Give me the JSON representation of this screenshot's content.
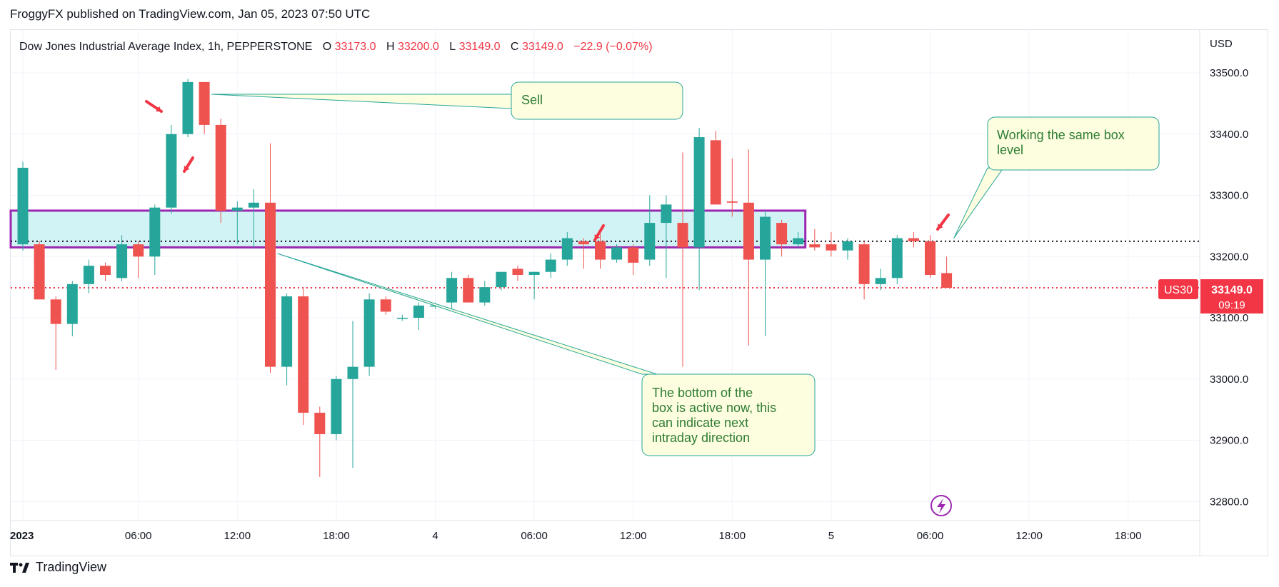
{
  "header": {
    "published_line": "FroggyFX published on TradingView.com, Jan 05, 2023 07:50 UTC"
  },
  "footer": {
    "logo_text": "TradingView",
    "logo_icon": "tradingview-logo-icon"
  },
  "colors": {
    "up": "#26a69a",
    "down": "#ef5350",
    "box_fill": "#d2f3f5",
    "box_border": "#9c27b0",
    "note_fill": "#fdfde0",
    "note_border": "#26a69a",
    "note_text": "#2e7d32",
    "price_line": "#f23645",
    "arrow": "#f23645"
  },
  "chart_data": {
    "type": "candlestick",
    "symbol_label": "US30",
    "legend": {
      "title": "Dow Jones Industrial Average Index, 1h, PEPPERSTONE",
      "o_label": "O",
      "o_value": "33173.0",
      "h_label": "H",
      "h_value": "33200.0",
      "l_label": "L",
      "l_value": "33149.0",
      "c_label": "C",
      "c_value": "33149.0",
      "change": "−22.9 (−0.07%)"
    },
    "y_axis": {
      "currency": "USD",
      "range": [
        32770,
        33570
      ],
      "ticks": [
        "33500.0",
        "33400.0",
        "33300.0",
        "33200.0",
        "33100.0",
        "33000.0",
        "32900.0",
        "32800.0"
      ],
      "tick_values": [
        33500,
        33400,
        33300,
        33200,
        33100,
        33000,
        32900,
        32800
      ]
    },
    "x_axis": {
      "ticks": [
        "2023",
        "06:00",
        "12:00",
        "18:00",
        "4",
        "06:00",
        "12:00",
        "18:00",
        "5",
        "06:00",
        "12:00",
        "18:00"
      ],
      "tick_bar_index": [
        0,
        7,
        13,
        19,
        25,
        31,
        37,
        43,
        49,
        55,
        61,
        67
      ]
    },
    "current_price": {
      "label": "US30",
      "value": "33149.0",
      "countdown": "09:19",
      "price": 33149
    },
    "dotted_level": 33225,
    "box": {
      "top": 33275,
      "bottom": 33215,
      "start_bar": -1,
      "end_bar": 47
    },
    "candles": [
      {
        "o": 33220,
        "h": 33355,
        "l": 33210,
        "c": 33345
      },
      {
        "o": 33220,
        "h": 33225,
        "l": 33130,
        "c": 33130
      },
      {
        "o": 33130,
        "h": 33135,
        "l": 33015,
        "c": 33090
      },
      {
        "o": 33090,
        "h": 33160,
        "l": 33070,
        "c": 33155
      },
      {
        "o": 33155,
        "h": 33195,
        "l": 33140,
        "c": 33185
      },
      {
        "o": 33185,
        "h": 33190,
        "l": 33160,
        "c": 33170
      },
      {
        "o": 33165,
        "h": 33235,
        "l": 33160,
        "c": 33220
      },
      {
        "o": 33220,
        "h": 33225,
        "l": 33165,
        "c": 33200
      },
      {
        "o": 33200,
        "h": 33285,
        "l": 33170,
        "c": 33280
      },
      {
        "o": 33280,
        "h": 33415,
        "l": 33270,
        "c": 33400
      },
      {
        "o": 33400,
        "h": 33490,
        "l": 33395,
        "c": 33485
      },
      {
        "o": 33485,
        "h": 33485,
        "l": 33400,
        "c": 33415
      },
      {
        "o": 33415,
        "h": 33425,
        "l": 33255,
        "c": 33275
      },
      {
        "o": 33275,
        "h": 33290,
        "l": 33220,
        "c": 33280
      },
      {
        "o": 33280,
        "h": 33310,
        "l": 33215,
        "c": 33288
      },
      {
        "o": 33288,
        "h": 33385,
        "l": 33010,
        "c": 33020
      },
      {
        "o": 33020,
        "h": 33140,
        "l": 32990,
        "c": 33135
      },
      {
        "o": 33135,
        "h": 33150,
        "l": 32925,
        "c": 32945
      },
      {
        "o": 32945,
        "h": 32955,
        "l": 32840,
        "c": 32910
      },
      {
        "o": 32910,
        "h": 33005,
        "l": 32900,
        "c": 33000
      },
      {
        "o": 33000,
        "h": 33095,
        "l": 32855,
        "c": 33020
      },
      {
        "o": 33020,
        "h": 33140,
        "l": 33005,
        "c": 33130
      },
      {
        "o": 33130,
        "h": 33135,
        "l": 33105,
        "c": 33110
      },
      {
        "o": 33100,
        "h": 33105,
        "l": 33095,
        "c": 33100
      },
      {
        "o": 33100,
        "h": 33125,
        "l": 33080,
        "c": 33120
      },
      {
        "o": 33120,
        "h": 33125,
        "l": 33115,
        "c": 33120
      },
      {
        "o": 33125,
        "h": 33175,
        "l": 33115,
        "c": 33165
      },
      {
        "o": 33165,
        "h": 33170,
        "l": 33125,
        "c": 33125
      },
      {
        "o": 33125,
        "h": 33160,
        "l": 33120,
        "c": 33150
      },
      {
        "o": 33150,
        "h": 33175,
        "l": 33145,
        "c": 33175
      },
      {
        "o": 33180,
        "h": 33185,
        "l": 33160,
        "c": 33170
      },
      {
        "o": 33170,
        "h": 33175,
        "l": 33130,
        "c": 33175
      },
      {
        "o": 33175,
        "h": 33205,
        "l": 33165,
        "c": 33195
      },
      {
        "o": 33195,
        "h": 33240,
        "l": 33185,
        "c": 33230
      },
      {
        "o": 33225,
        "h": 33230,
        "l": 33180,
        "c": 33220
      },
      {
        "o": 33225,
        "h": 33240,
        "l": 33180,
        "c": 33195
      },
      {
        "o": 33195,
        "h": 33220,
        "l": 33190,
        "c": 33215
      },
      {
        "o": 33215,
        "h": 33220,
        "l": 33170,
        "c": 33190
      },
      {
        "o": 33195,
        "h": 33300,
        "l": 33185,
        "c": 33255
      },
      {
        "o": 33255,
        "h": 33300,
        "l": 33165,
        "c": 33285
      },
      {
        "o": 33255,
        "h": 33370,
        "l": 33020,
        "c": 33215
      },
      {
        "o": 33215,
        "h": 33410,
        "l": 33145,
        "c": 33395
      },
      {
        "o": 33390,
        "h": 33405,
        "l": 33285,
        "c": 33285
      },
      {
        "o": 33290,
        "h": 33360,
        "l": 33265,
        "c": 33288
      },
      {
        "o": 33288,
        "h": 33375,
        "l": 33055,
        "c": 33195
      },
      {
        "o": 33195,
        "h": 33275,
        "l": 33070,
        "c": 33265
      },
      {
        "o": 33255,
        "h": 33260,
        "l": 33200,
        "c": 33220
      },
      {
        "o": 33220,
        "h": 33240,
        "l": 33215,
        "c": 33230
      },
      {
        "o": 33220,
        "h": 33245,
        "l": 33210,
        "c": 33215
      },
      {
        "o": 33220,
        "h": 33240,
        "l": 33200,
        "c": 33210
      },
      {
        "o": 33210,
        "h": 33230,
        "l": 33195,
        "c": 33225
      },
      {
        "o": 33220,
        "h": 33225,
        "l": 33130,
        "c": 33155
      },
      {
        "o": 33155,
        "h": 33180,
        "l": 33145,
        "c": 33165
      },
      {
        "o": 33165,
        "h": 33235,
        "l": 33155,
        "c": 33230
      },
      {
        "o": 33230,
        "h": 33240,
        "l": 33215,
        "c": 33225
      },
      {
        "o": 33225,
        "h": 33235,
        "l": 33165,
        "c": 33170
      },
      {
        "o": 33173,
        "h": 33200,
        "l": 33149,
        "c": 33149
      }
    ],
    "annotations": [
      {
        "id": "sell",
        "text_lines": [
          "Sell"
        ],
        "pointer_bar": 11,
        "pointer_price": 33465
      },
      {
        "id": "box-bottom",
        "text_lines": [
          "The bottom of the",
          "box is active now, this",
          "can indicate next",
          "intraday direction"
        ],
        "pointer_bar": 15,
        "pointer_price": 33205
      },
      {
        "id": "same-box",
        "text_lines": [
          "Working the same box",
          "level"
        ],
        "pointer_bar": 56,
        "pointer_price": 33230
      }
    ]
  }
}
